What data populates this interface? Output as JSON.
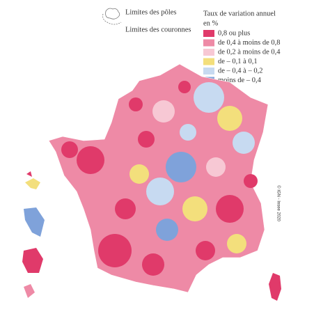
{
  "boundaries": {
    "poles": "Limites des pôles",
    "couronnes": "Limites des couronnes"
  },
  "legend": {
    "title": "Taux de variation annuel",
    "unit": "en %",
    "items": [
      {
        "label": "0,8 ou plus",
        "color": "#e03a6a"
      },
      {
        "label": "de 0,4 à moins de 0,8",
        "color": "#ee8aa6"
      },
      {
        "label": "de 0,2 à moins de 0,4",
        "color": "#f7c8d4"
      },
      {
        "label": "de – 0,1 à 0,1",
        "color": "#f3df7c"
      },
      {
        "label": "de – 0,4 à – 0,2",
        "color": "#c7daf1"
      },
      {
        "label": "moins de – 0,4",
        "color": "#7fa2da"
      }
    ]
  },
  "credit": "© IGN - Insee 2020"
}
